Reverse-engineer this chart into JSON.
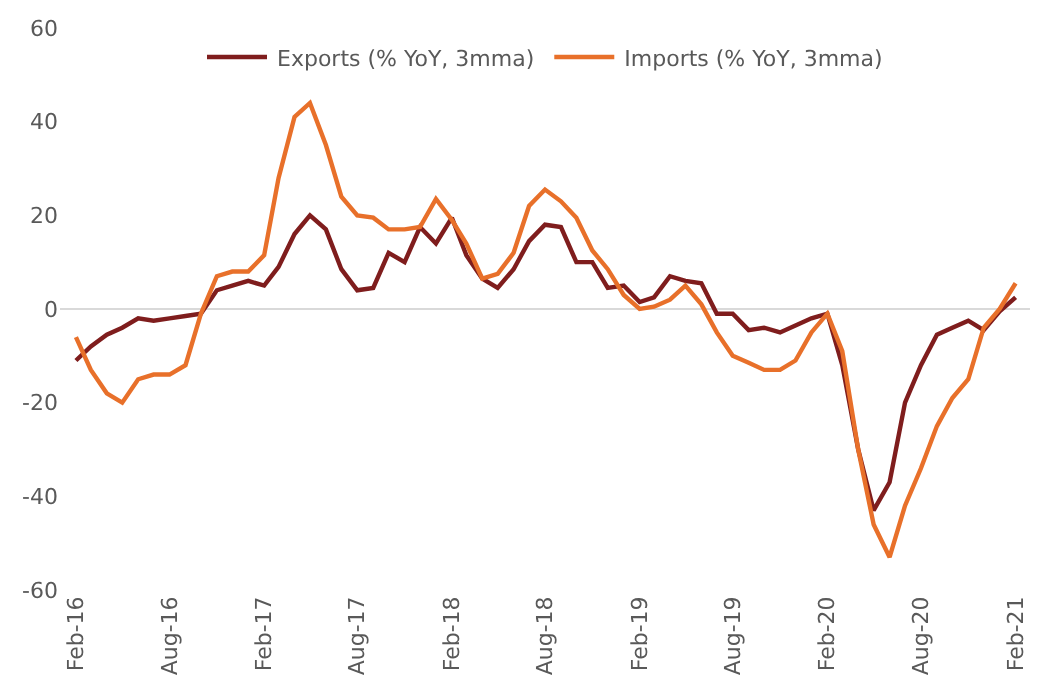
{
  "chart_data": {
    "type": "line",
    "x": [
      "2016-02",
      "2016-03",
      "2016-04",
      "2016-05",
      "2016-06",
      "2016-07",
      "2016-08",
      "2016-09",
      "2016-10",
      "2016-11",
      "2016-12",
      "2017-01",
      "2017-02",
      "2017-03",
      "2017-04",
      "2017-05",
      "2017-06",
      "2017-07",
      "2017-08",
      "2017-09",
      "2017-10",
      "2017-11",
      "2017-12",
      "2018-01",
      "2018-02",
      "2018-03",
      "2018-04",
      "2018-05",
      "2018-06",
      "2018-07",
      "2018-08",
      "2018-09",
      "2018-10",
      "2018-11",
      "2018-12",
      "2019-01",
      "2019-02",
      "2019-03",
      "2019-04",
      "2019-05",
      "2019-06",
      "2019-07",
      "2019-08",
      "2019-09",
      "2019-10",
      "2019-11",
      "2019-12",
      "2020-01",
      "2020-02",
      "2020-03",
      "2020-04",
      "2020-05",
      "2020-06",
      "2020-07",
      "2020-08",
      "2020-09",
      "2020-10",
      "2020-11",
      "2020-12",
      "2021-01",
      "2021-02"
    ],
    "series": [
      {
        "name": "Exports (% YoY, 3mma)",
        "color": "#7f1d1d",
        "values": [
          -11,
          -8,
          -5.5,
          -4,
          -2,
          -2.5,
          -2,
          -1.5,
          -1,
          4,
          5,
          6,
          5,
          9,
          16,
          20,
          17,
          8.5,
          4,
          4.5,
          12,
          10,
          17.5,
          14,
          19.5,
          11.5,
          6.5,
          4.5,
          8.5,
          14.5,
          18,
          17.5,
          10,
          10,
          4.5,
          5,
          1.5,
          2.5,
          7,
          6,
          5.5,
          -1,
          -1,
          -4.5,
          -4,
          -5,
          -3.5,
          -2,
          -1,
          -12,
          -30,
          -43,
          -37,
          -20,
          -12,
          -5.5,
          -4,
          -2.5,
          -4.5,
          -0.5,
          2.5
        ]
      },
      {
        "name": "Imports (% YoY, 3mma)",
        "color": "#e8702a",
        "values": [
          -6,
          -13,
          -18,
          -20,
          -15,
          -14,
          -14,
          -12,
          -1,
          7,
          8,
          8,
          11.5,
          28,
          41,
          44,
          35,
          24,
          20,
          19.5,
          17,
          17,
          17.5,
          23.5,
          19,
          14,
          6.5,
          7.5,
          12,
          22,
          25.5,
          23,
          19.5,
          12.5,
          8.5,
          3,
          0,
          0.5,
          2,
          5,
          1,
          -5,
          -10,
          -11.5,
          -13,
          -13,
          -11,
          -5,
          -1,
          -9,
          -30,
          -46,
          -53,
          -42,
          -34,
          -25,
          -19,
          -15,
          -4,
          0,
          5.5
        ]
      }
    ],
    "ylim": [
      -60,
      60
    ],
    "yticks": [
      -60,
      -40,
      -20,
      0,
      20,
      40,
      60
    ],
    "xlim": [
      "2016-01-01",
      "2021-03-01"
    ],
    "xticks": [
      {
        "value": "2016-02",
        "label": "Feb-16"
      },
      {
        "value": "2016-08",
        "label": "Aug-16"
      },
      {
        "value": "2017-02",
        "label": "Feb-17"
      },
      {
        "value": "2017-08",
        "label": "Aug-17"
      },
      {
        "value": "2018-02",
        "label": "Feb-18"
      },
      {
        "value": "2018-08",
        "label": "Aug-18"
      },
      {
        "value": "2019-02",
        "label": "Feb-19"
      },
      {
        "value": "2019-08",
        "label": "Aug-19"
      },
      {
        "value": "2020-02",
        "label": "Feb-20"
      },
      {
        "value": "2020-08",
        "label": "Aug-20"
      },
      {
        "value": "2021-02",
        "label": "Feb-21"
      }
    ],
    "ref_lines": [
      {
        "axis": "y",
        "value": 0,
        "color": "#d9d9d9"
      }
    ],
    "grid": false,
    "legend": "top",
    "marker": "none",
    "line_style": "solid"
  }
}
